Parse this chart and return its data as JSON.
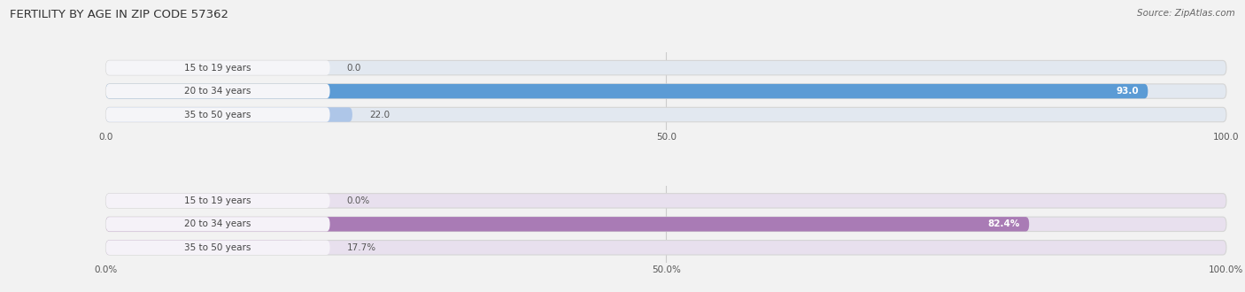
{
  "title": "FERTILITY BY AGE IN ZIP CODE 57362",
  "source": "Source: ZipAtlas.com",
  "top_chart": {
    "categories": [
      "15 to 19 years",
      "20 to 34 years",
      "35 to 50 years"
    ],
    "values": [
      0.0,
      93.0,
      22.0
    ],
    "bar_color_full": "#5b9bd5",
    "bar_color_light": "#aec6e8",
    "bar_bg": "#e2e8f0",
    "label_bg": "#f5f5f8",
    "xlim": [
      0,
      100
    ],
    "xticks": [
      0.0,
      50.0,
      100.0
    ],
    "xtick_labels": [
      "0.0",
      "50.0",
      "100.0"
    ]
  },
  "bottom_chart": {
    "categories": [
      "15 to 19 years",
      "20 to 34 years",
      "35 to 50 years"
    ],
    "values": [
      0.0,
      82.4,
      17.7
    ],
    "bar_color_full": "#a97bb5",
    "bar_color_light": "#c9aed6",
    "bar_bg": "#e8e0ee",
    "label_bg": "#f5f2f8",
    "xlim": [
      0,
      100
    ],
    "xticks": [
      0.0,
      50.0,
      100.0
    ],
    "xtick_labels": [
      "0.0%",
      "50.0%",
      "100.0%"
    ]
  },
  "fig_bg": "#f2f2f2",
  "label_fontsize": 7.5,
  "value_fontsize": 7.5,
  "title_fontsize": 9.5,
  "source_fontsize": 7.5
}
